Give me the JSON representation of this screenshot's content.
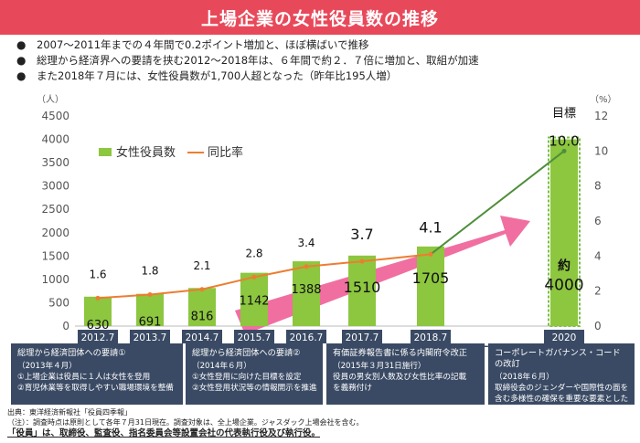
{
  "title": "上場企業の女性役員数の推移",
  "bullets": [
    "2007～2011年までの４年間で0.2ポイント増加と、ほぼ横ばいで推移",
    "総理から経済界への要請を挟む2012～2018年は、６年間で約２．７倍に増加と、取組が加速",
    "また2018年７月には、女性役員数が1,700人超となった（昨年比195人増）"
  ],
  "chart_data": {
    "type": "bar",
    "categories": [
      "2012.7",
      "2013.7",
      "2014.7",
      "2015.7",
      "2016.7",
      "2017.7",
      "2018.7",
      "2020"
    ],
    "series": [
      {
        "name": "女性役員数",
        "values": [
          630,
          691,
          816,
          1142,
          1388,
          1510,
          1705,
          4000
        ],
        "axis": "left"
      },
      {
        "name": "同比率",
        "values": [
          1.6,
          1.8,
          2.1,
          2.8,
          3.4,
          3.7,
          4.1,
          10.0
        ],
        "axis": "right",
        "type": "line"
      }
    ],
    "bar_labels": [
      "630",
      "691",
      "816",
      "1142",
      "1388",
      "1510",
      "1705",
      "約\n4000"
    ],
    "ratio_labels": [
      "1.6",
      "1.8",
      "2.1",
      "2.8",
      "3.4",
      "3.7",
      "4.1",
      "10.0"
    ],
    "ylabel_left": "（人）",
    "ylabel_right": "（%）",
    "ylim_left": [
      0,
      4500
    ],
    "ylim_right": [
      0,
      12
    ],
    "yticks_left": [
      0,
      500,
      1000,
      1500,
      2000,
      2500,
      3000,
      3500,
      4000,
      4500
    ],
    "yticks_right": [
      0,
      2,
      4,
      6,
      8,
      10,
      12
    ],
    "target_label": "目標",
    "legend_position": "upper-left",
    "colors": {
      "bar": "#8dc63f",
      "line": "#ed7d31",
      "target_line": "#4e8f3a",
      "arrow": "#f06fa0",
      "target_border": "#7ac142"
    }
  },
  "notes": [
    {
      "title": "総理から経済団体への要請①",
      "lines": [
        "（2013年４月）",
        "①上場企業は役員に１人は女性を登用",
        "②育児休業等を取得しやすい職場環境を整備"
      ]
    },
    {
      "title": "総理から経済団体への要請②",
      "lines": [
        "（2014年６月）",
        "①女性登用に向けた目標を設定",
        "②女性登用状況等の情報開示を推進"
      ]
    },
    {
      "title": "有価証券報告書に係る内閣府令改正",
      "lines": [
        "（2015年３月31日施行）",
        "役員の男女別人数及び女性比率の記載",
        "を義務付け"
      ]
    },
    {
      "title": "コーポレートガバナンス・コードの改訂",
      "lines": [
        "（2018年６月）",
        "取締役会のジェンダーや国際性の面を",
        "含む多様性の確保を重要な要素とした"
      ]
    }
  ],
  "footer": [
    "出典：東洋経済新報社「役員四季報」",
    "（注）：調査時点は原則として各年７月31日現在。調査対象は、全上場企業。ジャスダック上場会社を含む。",
    "「役員」は、取締役、監査役、指名委員会等設置会社の代表執行役及び執行役。"
  ]
}
